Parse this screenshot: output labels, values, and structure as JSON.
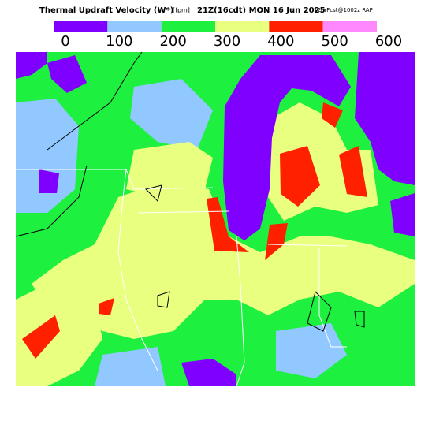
{
  "header": {
    "title": "Thermal Updraft Velocity (W*)",
    "units": "[fpm]",
    "valid": "21Z(16cdt) MON 16 Jun 2025",
    "model": "12hrFcst@1002z RAP"
  },
  "legend": {
    "bins": [
      0,
      100,
      200,
      300,
      400,
      500,
      600
    ],
    "colors": [
      "#8000ff",
      "#90c8ff",
      "#1ef040",
      "#e8ff80",
      "#ff2000",
      "#ff88ff"
    ]
  }
}
